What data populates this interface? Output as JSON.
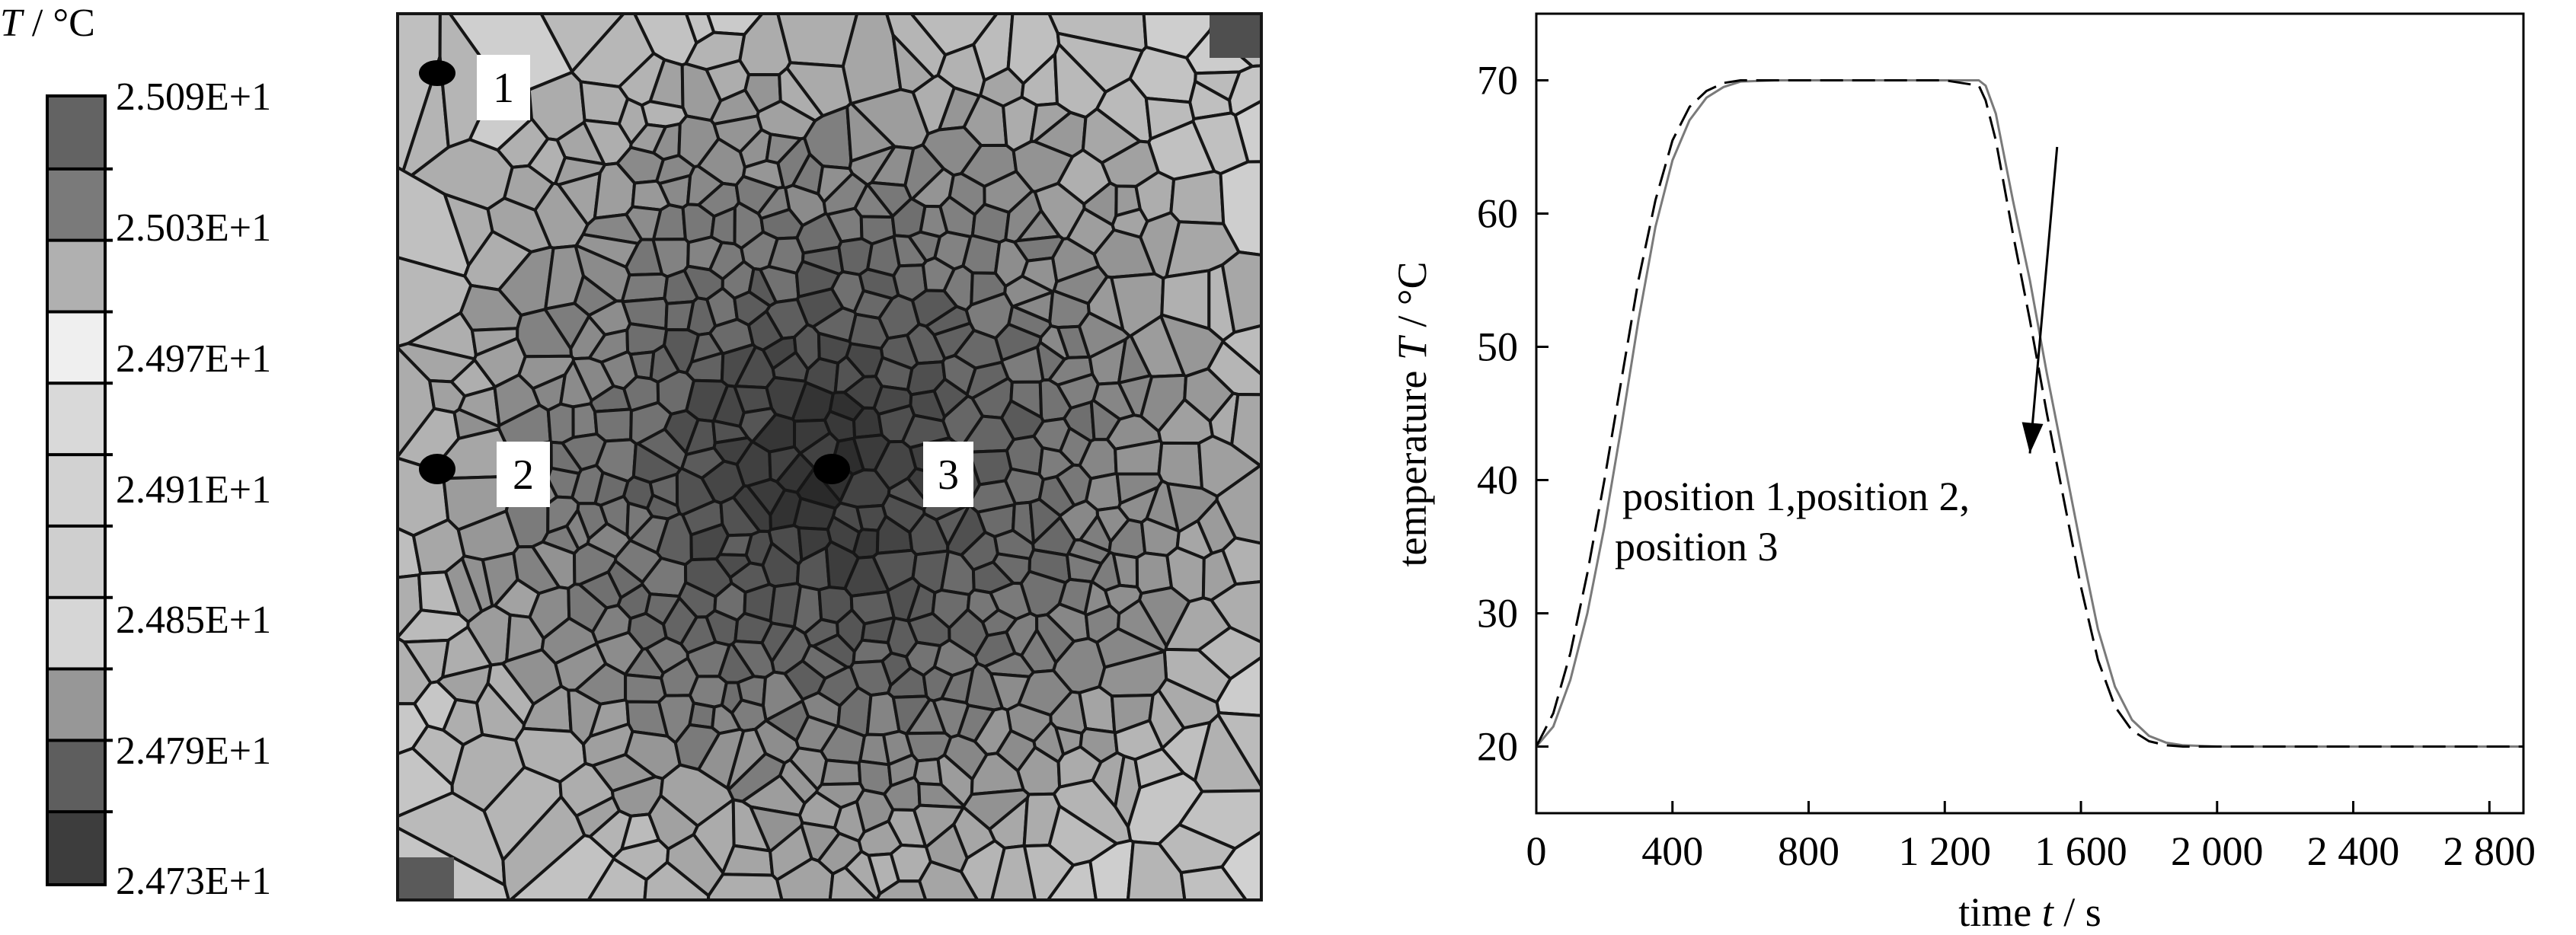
{
  "legend": {
    "title_var": "T",
    "title_unit": " / °C",
    "labels": [
      "2.509E+1",
      "2.503E+1",
      "2.497E+1",
      "2.491E+1",
      "2.485E+1",
      "2.479E+1",
      "2.473E+1"
    ],
    "band_colors": [
      "#636363",
      "#7a7a7a",
      "#b0b0b0",
      "#efefef",
      "#d9d9d9",
      "#d2d2d2",
      "#cfcfcf",
      "#d6d6d6",
      "#979797",
      "#5e5e5e",
      "#3d3d3d"
    ]
  },
  "mesh": {
    "markers": [
      "1",
      "2",
      "3"
    ],
    "colors": {
      "boundary": "#161616",
      "light": "#c2c2c2",
      "mid": "#8b8b8b",
      "dark": "#4a4a4a",
      "center": "#2e2e2e"
    }
  },
  "chart_data": {
    "type": "line",
    "xlabel_prefix": "time ",
    "xlabel_var": "t",
    "xlabel_unit": " / s",
    "ylabel_prefix": "temperature  ",
    "ylabel_var": "T",
    "ylabel_unit": " / °C",
    "xlim": [
      0,
      2900
    ],
    "ylim": [
      15,
      75
    ],
    "x_ticks": [
      0,
      400,
      800,
      1200,
      1600,
      2000,
      2400,
      2800
    ],
    "x_tick_labels": [
      "0",
      "400",
      "800",
      "1 200",
      "1 600",
      "2 000",
      "2 400",
      "2 800"
    ],
    "y_ticks": [
      20,
      30,
      40,
      50,
      60,
      70
    ],
    "y_tick_labels": [
      "20",
      "30",
      "40",
      "50",
      "60",
      "70"
    ],
    "annotation_lines": [
      "position 1,position 2,",
      "position 3"
    ],
    "series": [
      {
        "style": "solid",
        "color": "#7a7a7a",
        "x": [
          0,
          50,
          100,
          150,
          200,
          250,
          300,
          350,
          400,
          450,
          500,
          550,
          600,
          700,
          800,
          900,
          1000,
          1100,
          1200,
          1300,
          1320,
          1350,
          1400,
          1450,
          1500,
          1550,
          1600,
          1650,
          1700,
          1750,
          1800,
          1850,
          1900,
          2000,
          2200,
          2400,
          2600,
          2800,
          2900
        ],
        "y": [
          20.0,
          21.5,
          25.0,
          30.0,
          36.5,
          44.0,
          52.0,
          59.0,
          64.0,
          67.0,
          68.7,
          69.5,
          69.9,
          70.0,
          70.0,
          70.0,
          70.0,
          70.0,
          70.0,
          70.0,
          69.6,
          67.5,
          61.0,
          55.0,
          48.0,
          41.5,
          35.0,
          28.8,
          24.5,
          22.0,
          20.8,
          20.3,
          20.1,
          20.0,
          20.0,
          20.0,
          20.0,
          20.0,
          20.0
        ]
      },
      {
        "style": "dashed",
        "color": "#000000",
        "x": [
          0,
          50,
          100,
          150,
          200,
          250,
          300,
          350,
          400,
          450,
          500,
          550,
          600,
          700,
          800,
          900,
          1000,
          1100,
          1200,
          1300,
          1320,
          1350,
          1400,
          1450,
          1500,
          1550,
          1600,
          1650,
          1700,
          1750,
          1800,
          1850,
          1900,
          2000,
          2200,
          2400,
          2600,
          2800,
          2900
        ],
        "y": [
          20.0,
          22.5,
          27.0,
          33.0,
          40.0,
          47.5,
          55.0,
          61.0,
          65.5,
          68.0,
          69.2,
          69.8,
          70.0,
          70.0,
          70.0,
          70.0,
          70.0,
          70.0,
          70.0,
          69.6,
          68.5,
          65.5,
          58.5,
          52.0,
          45.0,
          38.5,
          32.0,
          26.5,
          23.0,
          21.2,
          20.4,
          20.1,
          20.0,
          20.0,
          20.0,
          20.0,
          20.0,
          20.0,
          20.0
        ]
      }
    ],
    "arrow": {
      "from": [
        1530,
        65
      ],
      "to": [
        1450,
        42
      ]
    }
  }
}
